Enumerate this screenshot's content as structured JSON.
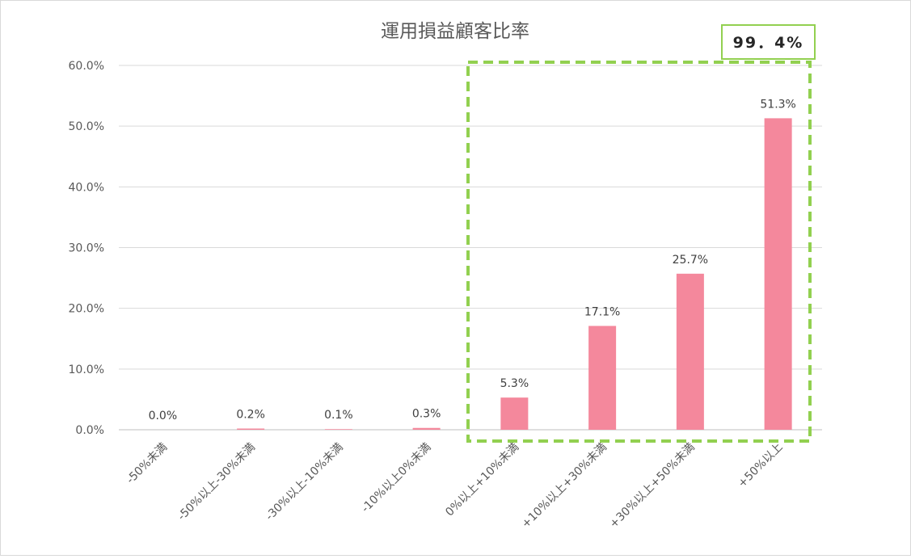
{
  "chart_data": {
    "type": "bar",
    "title": "運用損益顧客比率",
    "categories": [
      "-50%未満",
      "-50%以上-30%未満",
      "-30%以上-10%未満",
      "-10%以上0%未満",
      "0%以上+10%未満",
      "+10%以上+30%未満",
      "+30%以上+50%未満",
      "+50%以上"
    ],
    "values": [
      0.0,
      0.2,
      0.1,
      0.3,
      5.3,
      17.1,
      25.7,
      51.3
    ],
    "value_labels": [
      "0.0%",
      "0.2%",
      "0.1%",
      "0.3%",
      "5.3%",
      "17.1%",
      "25.7%",
      "51.3%"
    ],
    "y_ticks": [
      "0.0%",
      "10.0%",
      "20.0%",
      "30.0%",
      "40.0%",
      "50.0%",
      "60.0%"
    ],
    "ylim": [
      0,
      60
    ],
    "grid": true,
    "bar_color": "#f4889c",
    "annotation": {
      "text": "99．4%",
      "highlight_color": "#92d050",
      "highlight_range": [
        "0%以上+10%未満",
        "+50%以上"
      ]
    }
  }
}
